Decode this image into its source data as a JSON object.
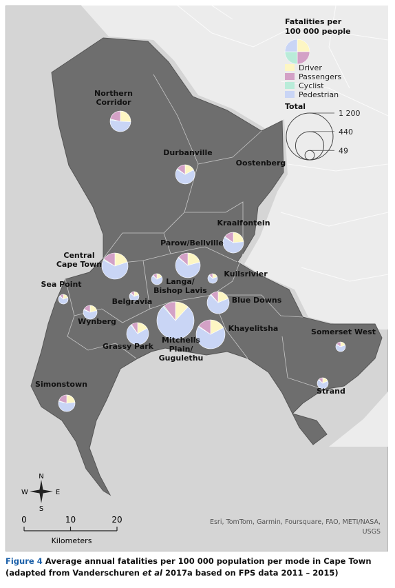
{
  "legend": {
    "title_lines": [
      "Fatalities per",
      "100 000 people"
    ],
    "modes": [
      {
        "name": "Driver",
        "color": "#fdf6c3"
      },
      {
        "name": "Passengers",
        "color": "#d3a1c6"
      },
      {
        "name": "Cyclist",
        "color": "#b9ecd9"
      },
      {
        "name": "Pedestrian",
        "color": "#c9d5f5"
      }
    ],
    "total_title": "Total",
    "sizes": [
      {
        "value": 1200,
        "label": "1 200"
      },
      440,
      49
    ]
  },
  "regions": [
    {
      "label_lines": [
        "Northern",
        "Corridor"
      ],
      "values": [
        60,
        50,
        3,
        120
      ]
    },
    {
      "label_lines": [
        "Durbanville"
      ],
      "values": [
        35,
        30,
        3,
        135
      ]
    },
    {
      "label_lines": [
        "Oostenberg"
      ]
    },
    {
      "label_lines": [
        "Kraaifontein"
      ],
      "values": [
        55,
        35,
        3,
        140
      ]
    },
    {
      "label_lines": [
        "Parow/Bellville"
      ],
      "values": [
        70,
        45,
        3,
        218
      ]
    },
    {
      "label_lines": [
        "Central",
        "Cape Town"
      ],
      "values": [
        75,
        60,
        5,
        235
      ]
    },
    {
      "label_lines": [
        "Sea Point"
      ],
      "values": [
        10,
        6,
        1,
        34
      ]
    },
    {
      "label_lines": [
        "Langa/",
        "Bishop Lavis"
      ],
      "values": [
        12,
        8,
        1,
        45
      ]
    },
    {
      "label_lines": [
        "Kuilsrivier"
      ],
      "values": [
        10,
        6,
        1,
        34
      ]
    },
    {
      "label_lines": [
        "Blue Downs"
      ],
      "values": [
        50,
        30,
        3,
        183
      ]
    },
    {
      "label_lines": [
        "Belgravia"
      ],
      "values": [
        10,
        6,
        1,
        34
      ]
    },
    {
      "label_lines": [
        "Wynberg"
      ],
      "values": [
        22,
        18,
        2,
        62
      ]
    },
    {
      "label_lines": [
        "Mitchells",
        "Plain/",
        "Gugulethu"
      ],
      "values": [
        90,
        80,
        7,
        580
      ]
    },
    {
      "label_lines": [
        "Khayelitsha"
      ],
      "values": [
        80,
        70,
        4,
        304
      ]
    },
    {
      "label_lines": [
        "Grassy Park"
      ],
      "values": [
        45,
        25,
        3,
        193
      ]
    },
    {
      "label_lines": [
        "Somerset West"
      ],
      "values": [
        10,
        8,
        1,
        32
      ]
    },
    {
      "label_lines": [
        "Strand"
      ],
      "values": [
        12,
        8,
        1,
        45
      ]
    },
    {
      "label_lines": [
        "Simonstown"
      ],
      "values": [
        35,
        30,
        2,
        83
      ]
    }
  ],
  "compass": {
    "n": "N",
    "s": "S",
    "w": "W",
    "e": "E"
  },
  "scale": {
    "ticks": [
      0,
      10,
      20
    ],
    "unit": "Kilometers"
  },
  "attribution_lines": [
    "Esri, TomTom, Garmin, Foursquare, FAO, METI/NASA,",
    "USGS"
  ],
  "caption": {
    "label": "Figure 4",
    "text_before": " Average annual fatalities per 100 000 population per mode in Cape Town (adapted from Vanderschuren ",
    "italic": "et al",
    "text_after": " 2017a based on FPS data 2011 – 2015)"
  }
}
